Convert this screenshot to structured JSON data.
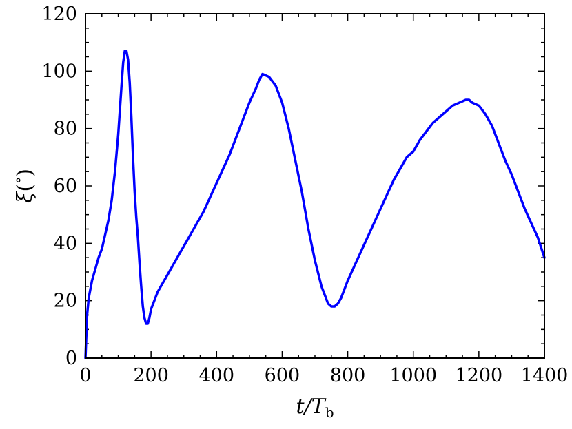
{
  "chart_data": {
    "type": "line",
    "title": "",
    "xlabel": {
      "main": "t/T",
      "sub": "b"
    },
    "ylabel": {
      "main": "ξ",
      "paren_open": "(",
      "degree": "°",
      "paren_close": ")"
    },
    "xlim": [
      0,
      1400
    ],
    "ylim": [
      0,
      120
    ],
    "x_ticks": [
      0,
      200,
      400,
      600,
      800,
      1000,
      1200,
      1400
    ],
    "y_ticks": [
      0,
      20,
      40,
      60,
      80,
      100,
      120
    ],
    "x_tick_labels": [
      "0",
      "200",
      "400",
      "600",
      "800",
      "1000",
      "1200",
      "1400"
    ],
    "y_tick_labels": [
      "0",
      "20",
      "40",
      "60",
      "80",
      "100",
      "120"
    ],
    "grid": false,
    "legend": "none",
    "series": [
      {
        "color": "#0000ff",
        "x": [
          0,
          5,
          10,
          20,
          30,
          40,
          50,
          60,
          70,
          80,
          90,
          100,
          110,
          115,
          120,
          125,
          130,
          135,
          140,
          145,
          150,
          155,
          160,
          165,
          170,
          175,
          180,
          185,
          190,
          195,
          200,
          210,
          220,
          240,
          260,
          280,
          300,
          320,
          340,
          360,
          380,
          400,
          420,
          440,
          460,
          480,
          500,
          520,
          530,
          540,
          560,
          580,
          600,
          620,
          640,
          660,
          680,
          700,
          720,
          740,
          750,
          760,
          770,
          780,
          800,
          820,
          840,
          860,
          880,
          900,
          920,
          940,
          960,
          980,
          1000,
          1020,
          1040,
          1060,
          1080,
          1100,
          1120,
          1140,
          1160,
          1170,
          1180,
          1200,
          1220,
          1240,
          1260,
          1280,
          1300,
          1320,
          1340,
          1360,
          1380,
          1400
        ],
        "y": [
          0,
          15,
          21,
          27,
          31,
          35,
          38,
          43,
          48,
          55,
          65,
          78,
          95,
          103,
          107,
          107,
          104,
          96,
          84,
          70,
          58,
          49,
          42,
          33,
          25,
          18,
          14,
          12,
          12,
          14,
          17,
          20,
          23,
          27,
          31,
          35,
          39,
          43,
          47,
          51,
          56,
          61,
          66,
          71,
          77,
          83,
          89,
          94,
          97,
          99,
          98,
          95,
          89,
          80,
          69,
          58,
          45,
          34,
          25,
          19,
          18,
          18,
          19,
          21,
          27,
          32,
          37,
          42,
          47,
          52,
          57,
          62,
          66,
          70,
          72,
          76,
          79,
          82,
          84,
          86,
          88,
          89,
          90,
          90,
          89,
          88,
          85,
          81,
          75,
          69,
          64,
          58,
          52,
          47,
          42,
          35
        ]
      }
    ]
  }
}
